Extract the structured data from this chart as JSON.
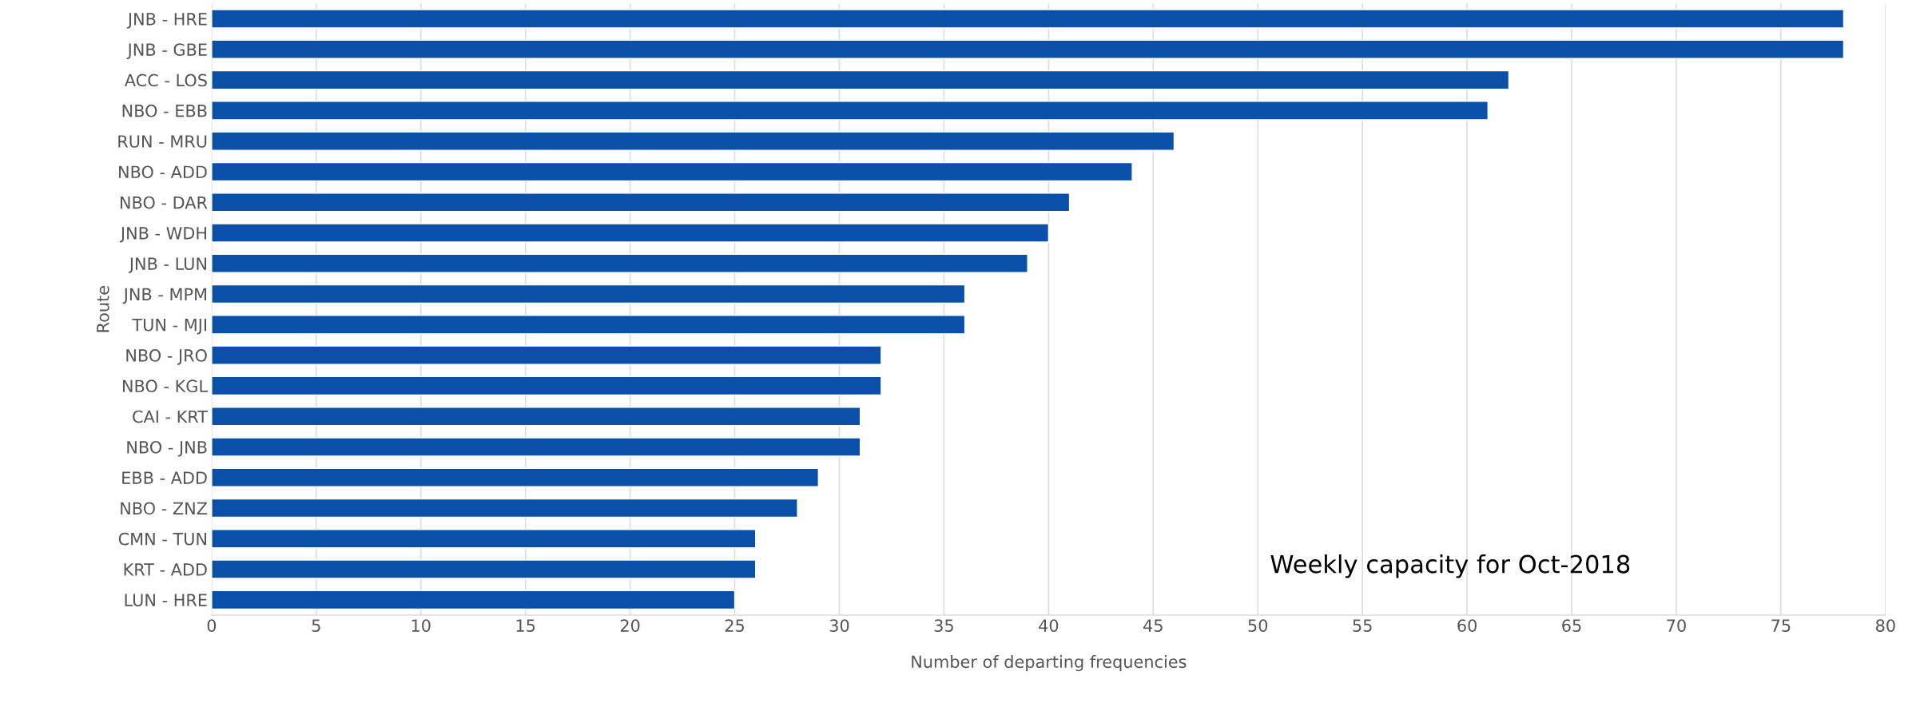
{
  "chart_data": {
    "type": "bar",
    "orientation": "horizontal",
    "categories": [
      "JNB - HRE",
      "JNB - GBE",
      "ACC - LOS",
      "NBO - EBB",
      "RUN - MRU",
      "NBO - ADD",
      "NBO - DAR",
      "JNB - WDH",
      "JNB - LUN",
      "JNB - MPM",
      "TUN - MJI",
      "NBO - JRO",
      "NBO - KGL",
      "CAI - KRT",
      "NBO - JNB",
      "EBB - ADD",
      "NBO - ZNZ",
      "CMN - TUN",
      "KRT - ADD",
      "LUN - HRE"
    ],
    "values": [
      78,
      78,
      62,
      61,
      46,
      44,
      41,
      40,
      39,
      36,
      36,
      32,
      32,
      31,
      31,
      29,
      28,
      26,
      26,
      25
    ],
    "color": "#0a4fa8",
    "xlabel": "Number of departing frequencies",
    "ylabel": "Route",
    "xlim": [
      0,
      80
    ],
    "xticks": [
      0,
      5,
      10,
      15,
      20,
      25,
      30,
      35,
      40,
      45,
      50,
      55,
      60,
      65,
      70,
      75,
      80
    ],
    "grid": "x",
    "annotations": [
      "Weekly capacity for Oct-2018"
    ]
  }
}
